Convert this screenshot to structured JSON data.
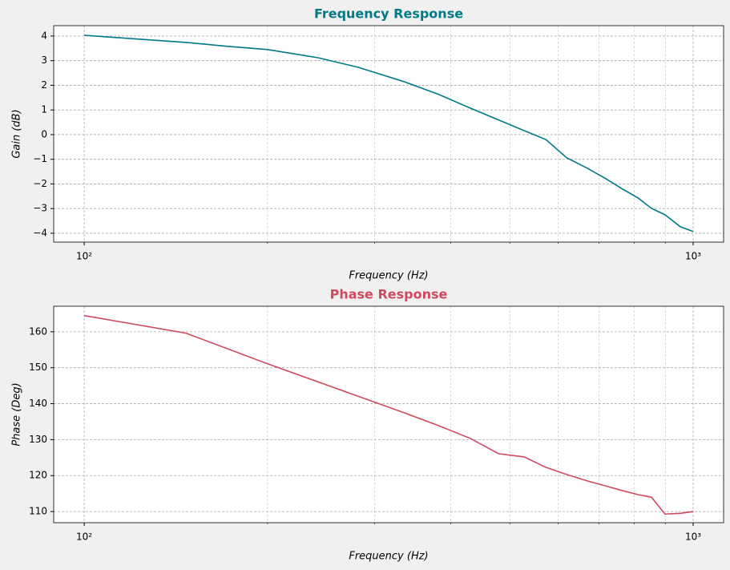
{
  "chart_data": [
    {
      "type": "line",
      "title": "Frequency Response",
      "title_color": "#007a87",
      "xlabel": "Frequency (Hz)",
      "ylabel": "Gain (dB)",
      "xscale": "log",
      "grid": true,
      "xlim": [
        89.1,
        1122
      ],
      "xticks": [
        {
          "value": 100,
          "label": "10²"
        },
        {
          "value": 1000,
          "label": "10³"
        }
      ],
      "xminorticks": [
        200,
        300,
        400,
        500,
        600,
        700,
        800,
        900
      ],
      "ylim": [
        -4.36,
        4.42
      ],
      "yticks": [
        {
          "value": -4,
          "label": "−4"
        },
        {
          "value": -3,
          "label": "−3"
        },
        {
          "value": -2,
          "label": "−2"
        },
        {
          "value": -1,
          "label": "−1"
        },
        0,
        1,
        2,
        3,
        4
      ],
      "x": [
        100,
        147,
        172,
        200,
        242,
        282,
        335,
        382,
        431,
        484,
        528,
        573,
        620,
        671,
        719,
        766,
        812,
        854,
        899,
        953,
        1000
      ],
      "series": [
        {
          "name": "Gain",
          "color": "#007a87",
          "values": [
            4.03,
            3.74,
            3.58,
            3.45,
            3.12,
            2.73,
            2.15,
            1.63,
            1.07,
            0.55,
            0.16,
            -0.2,
            -0.94,
            -1.37,
            -1.79,
            -2.21,
            -2.57,
            -2.99,
            -3.25,
            -3.74,
            -3.93
          ]
        }
      ]
    },
    {
      "type": "line",
      "title": "Phase Response",
      "title_color": "#d04a5e",
      "xlabel": "Frequency (Hz)",
      "ylabel": "Phase (Deg)",
      "xscale": "log",
      "grid": true,
      "xlim": [
        89.1,
        1122
      ],
      "xticks": [
        {
          "value": 100,
          "label": "10²"
        },
        {
          "value": 1000,
          "label": "10³"
        }
      ],
      "xminorticks": [
        200,
        300,
        400,
        500,
        600,
        700,
        800,
        900
      ],
      "ylim": [
        106.9,
        167.1
      ],
      "yticks": [
        110,
        120,
        130,
        140,
        150,
        160
      ],
      "x": [
        100,
        147,
        200,
        335,
        382,
        431,
        479,
        528,
        573,
        620,
        671,
        719,
        766,
        812,
        854,
        899,
        953,
        1000
      ],
      "series": [
        {
          "name": "Phase",
          "color": "#d04a5e",
          "values": [
            164.5,
            159.6,
            151.1,
            137.5,
            133.9,
            130.3,
            126.1,
            125.2,
            122.3,
            120.3,
            118.5,
            117.1,
            115.8,
            114.7,
            114.0,
            109.3,
            109.5,
            110.0
          ]
        }
      ]
    }
  ]
}
